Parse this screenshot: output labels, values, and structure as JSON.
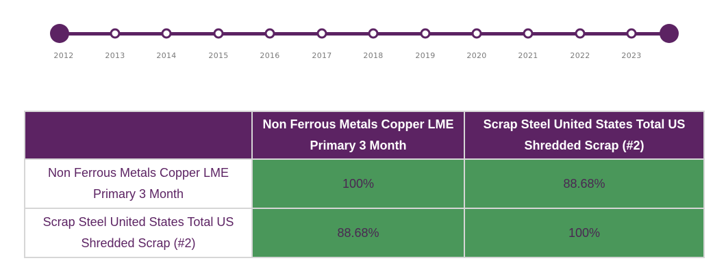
{
  "timeline": {
    "years": [
      "2012",
      "2013",
      "2014",
      "2015",
      "2016",
      "2017",
      "2018",
      "2019",
      "2020",
      "2021",
      "2022",
      "2023"
    ],
    "track_color": "#5c2363"
  },
  "table": {
    "header": {
      "corner": "",
      "col1": "Non Ferrous Metals Copper LME Primary 3 Month",
      "col2": "Scrap Steel United States Total US Shredded Scrap (#2)"
    },
    "rows": [
      {
        "label": "Non Ferrous Metals Copper LME Primary 3 Month",
        "values": [
          "100%",
          "88.68%"
        ]
      },
      {
        "label": "Scrap Steel United States Total US Shredded Scrap (#2)",
        "values": [
          "88.68%",
          "100%"
        ]
      }
    ]
  },
  "colors": {
    "header_bg": "#5c2363",
    "cell_bg": "#4a975a",
    "row_label": "#5c2363",
    "border": "#d6d6d6"
  }
}
